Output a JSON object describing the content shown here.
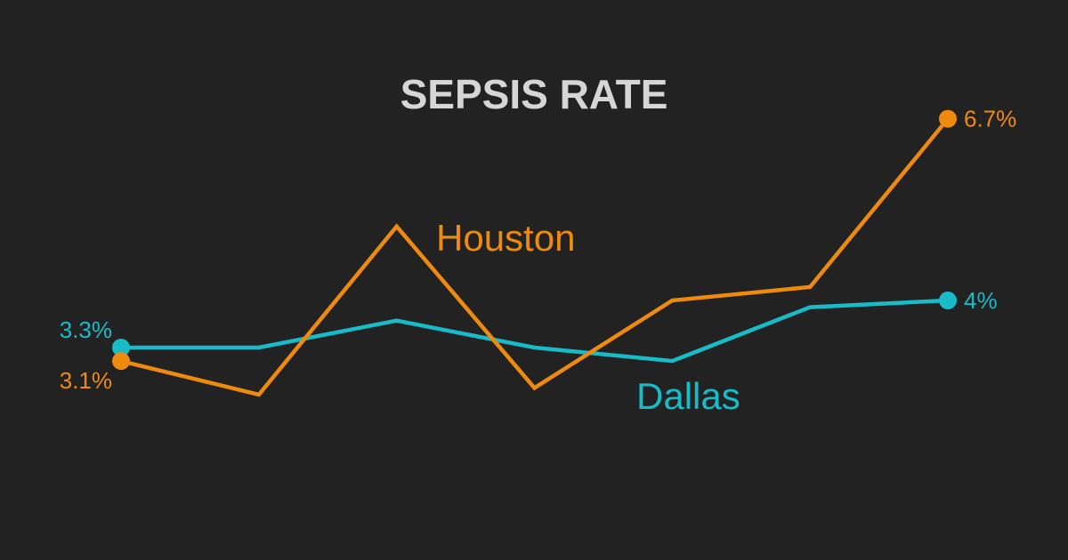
{
  "chart_data": {
    "type": "line",
    "title": "SEPSIS RATE",
    "xlabel": "",
    "ylabel": "",
    "x": [
      1,
      2,
      3,
      4,
      5,
      6,
      7
    ],
    "ylim": [
      1.5,
      7.5
    ],
    "grid": false,
    "series": [
      {
        "name": "Houston",
        "color": "#ee8a0e",
        "values": [
          3.1,
          2.6,
          5.1,
          2.7,
          4.0,
          4.2,
          6.7
        ],
        "start_label": "3.1%",
        "end_label": "6.7%"
      },
      {
        "name": "Dallas",
        "color": "#18bcc9",
        "values": [
          3.3,
          3.3,
          3.7,
          3.3,
          3.1,
          3.9,
          4.0
        ],
        "start_label": "3.3%",
        "end_label": "4%"
      }
    ]
  }
}
